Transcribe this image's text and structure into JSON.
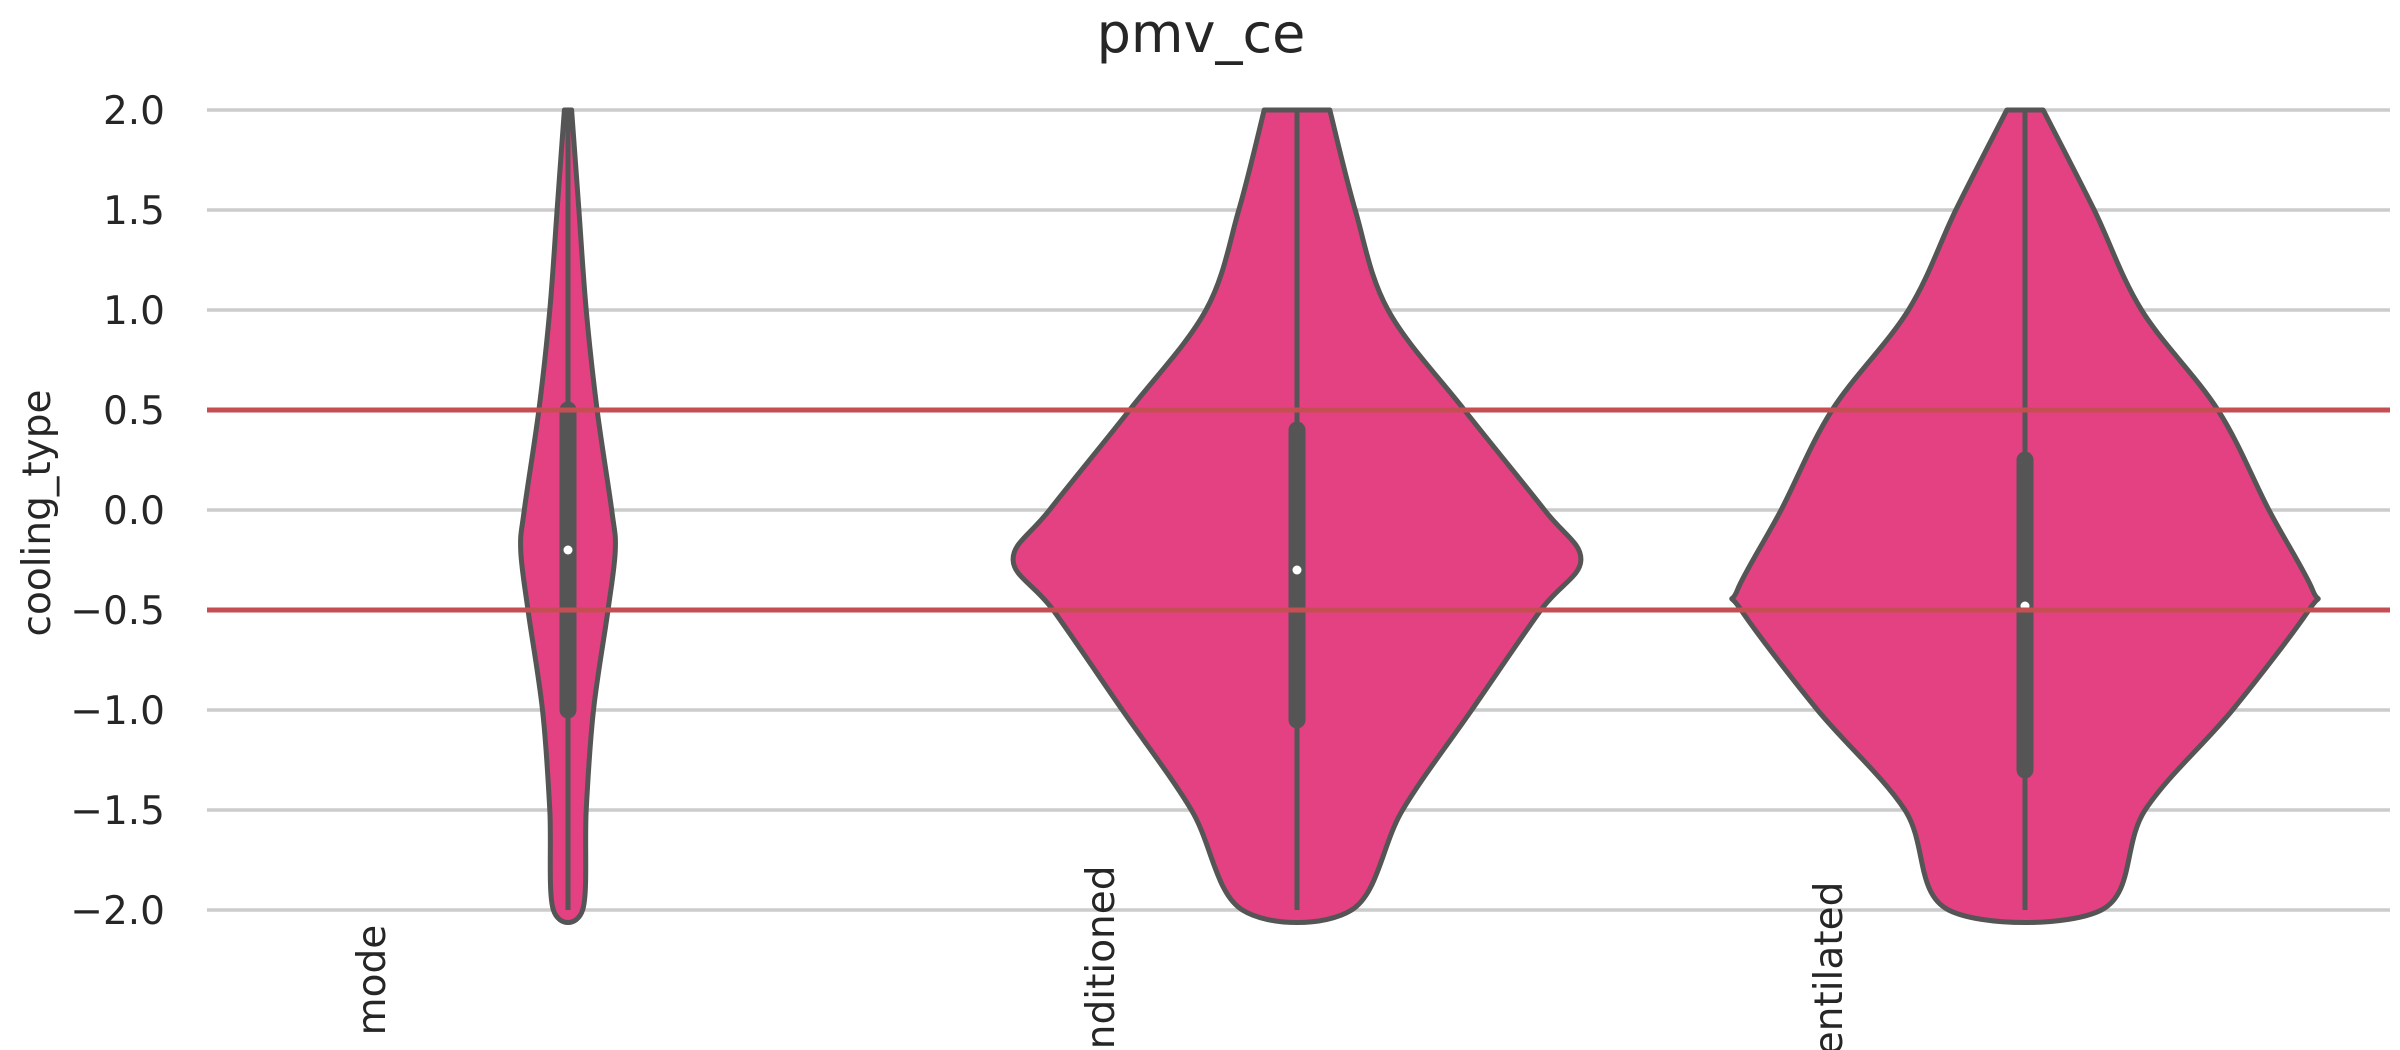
{
  "chart_data": {
    "type": "violin",
    "title": "pmv_ce",
    "xlabel": "",
    "ylabel": "cooling_type",
    "ylim": [
      -2.0,
      2.0
    ],
    "yticks": [
      "2.0",
      "1.5",
      "1.0",
      "0.5",
      "0.0",
      "−0.5",
      "−1.0",
      "−1.5",
      "−2.0"
    ],
    "ytick_values": [
      2.0,
      1.5,
      1.0,
      0.5,
      0.0,
      -0.5,
      -1.0,
      -1.5,
      -2.0
    ],
    "categories": [
      "mode",
      "conditioned",
      "ventilated"
    ],
    "grid": "horizontal",
    "fill_color": "#e34182",
    "edge_color": "#555555",
    "reference_lines": [
      {
        "y": 0.5,
        "color": "#c44e52"
      },
      {
        "y": -0.5,
        "color": "#c44e52"
      }
    ],
    "violins": [
      {
        "category": "mode",
        "median": -0.2,
        "q1": -1.0,
        "q3": 0.5,
        "profile": [
          [
            2.0,
            0.01
          ],
          [
            1.5,
            0.03
          ],
          [
            1.0,
            0.05
          ],
          [
            0.5,
            0.08
          ],
          [
            0.0,
            0.12
          ],
          [
            -0.2,
            0.13
          ],
          [
            -0.5,
            0.11
          ],
          [
            -1.0,
            0.07
          ],
          [
            -1.5,
            0.05
          ],
          [
            -2.0,
            0.04
          ]
        ]
      },
      {
        "category": "conditioned",
        "median": -0.3,
        "q1": -1.05,
        "q3": 0.4,
        "profile": [
          [
            2.0,
            0.09
          ],
          [
            1.5,
            0.16
          ],
          [
            1.0,
            0.25
          ],
          [
            0.5,
            0.46
          ],
          [
            0.0,
            0.68
          ],
          [
            -0.25,
            0.78
          ],
          [
            -0.5,
            0.67
          ],
          [
            -1.0,
            0.48
          ],
          [
            -1.5,
            0.29
          ],
          [
            -2.0,
            0.15
          ]
        ]
      },
      {
        "category": "ventilated",
        "median": -0.48,
        "q1": -1.3,
        "q3": 0.25,
        "profile": [
          [
            2.0,
            0.05
          ],
          [
            1.5,
            0.19
          ],
          [
            1.0,
            0.32
          ],
          [
            0.5,
            0.53
          ],
          [
            0.0,
            0.67
          ],
          [
            -0.4,
            0.79
          ],
          [
            -0.5,
            0.78
          ],
          [
            -1.0,
            0.57
          ],
          [
            -1.5,
            0.33
          ],
          [
            -2.0,
            0.21
          ]
        ]
      }
    ]
  }
}
